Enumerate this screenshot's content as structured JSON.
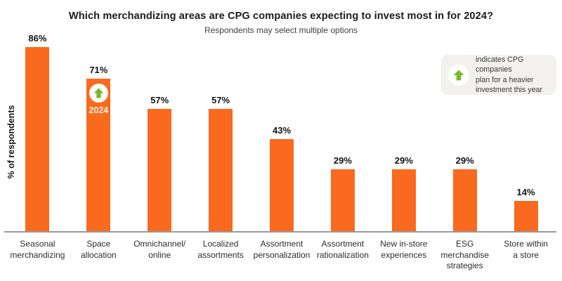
{
  "title": "Which merchandizing areas are CPG companies expecting to invest most in for 2024?",
  "subtitle": "Respondents may select multiple options",
  "ylabel": "% of respondents",
  "legend": {
    "icon": "up-arrow-icon",
    "text": "indicates CPG companies\nplan for a heavier\ninvestment this year"
  },
  "badge": {
    "bar_index": 1,
    "label": "2024",
    "icon": "up-arrow-icon"
  },
  "colors": {
    "bar": "#F96A1E",
    "arrow_green": "#76B82A",
    "legend_bg": "#F2F1EE",
    "baseline": "#97999C",
    "text": "#1C1C1C"
  },
  "chart_data": {
    "type": "bar",
    "categories": [
      "Seasonal\nmerchandizing",
      "Space\nallocation",
      "Omnichannel/\nonline",
      "Localized\nassortments",
      "Assortment\npersonalization",
      "Assortment\nrationalization",
      "New in-store\nexperiences",
      "ESG\nmerchandise\nstrategies",
      "Store within\na store"
    ],
    "values": [
      86,
      71,
      57,
      57,
      43,
      29,
      29,
      29,
      14
    ],
    "data_labels": [
      "86%",
      "71%",
      "57%",
      "57%",
      "43%",
      "29%",
      "29%",
      "29%",
      "14%"
    ],
    "title": "Which merchandizing areas are CPG companies expecting to invest most in for 2024?",
    "subtitle": "Respondents may select multiple options",
    "xlabel": "",
    "ylabel": "% of respondents",
    "ylim": [
      0,
      100
    ],
    "grid": false,
    "legend_position": "top-right",
    "annotations": [
      "Green up-arrow badge with label 2024 on the Space allocation bar"
    ]
  }
}
